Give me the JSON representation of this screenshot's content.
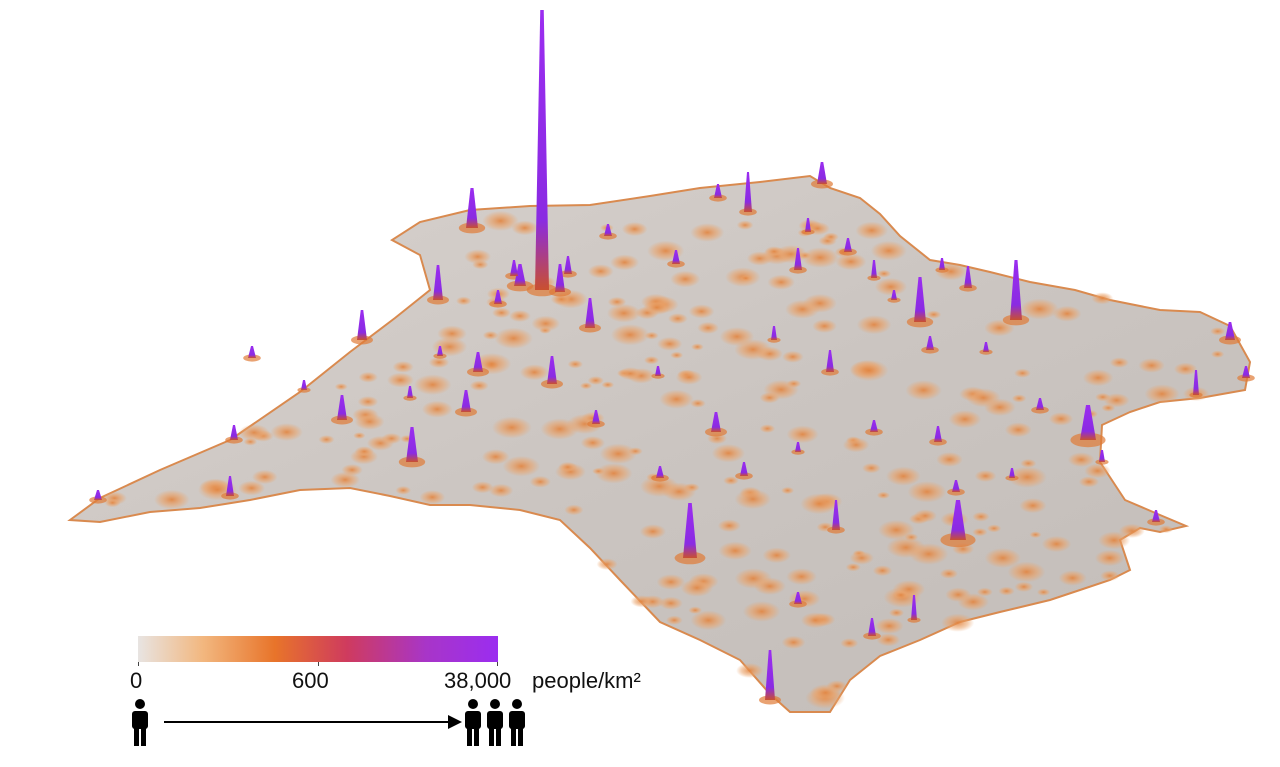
{
  "legend": {
    "min_label": "0",
    "mid_label": "600",
    "max_label": "38,000",
    "unit": "people/km²",
    "colors": [
      "#e8e4e2",
      "#f2b77f",
      "#e8742a",
      "#cf3b5e",
      "#a835c8",
      "#9b2df0"
    ]
  },
  "icons": {
    "left": "person-icon",
    "right": "people-group-icon",
    "arrow": "arrow-right-icon"
  },
  "map": {
    "subject": "population-density-terrain",
    "base_color": "#c9c4c0",
    "low_density_color": "#e59a5b",
    "peak_color": "#8a2be2"
  }
}
